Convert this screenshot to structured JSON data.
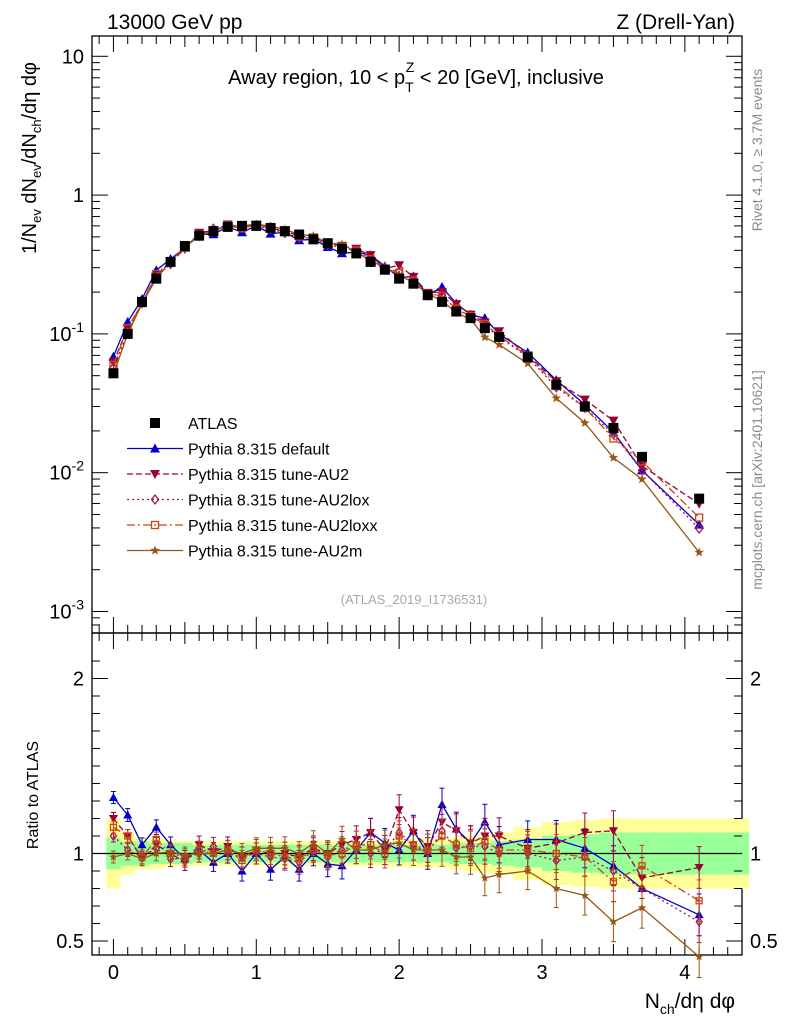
{
  "header": {
    "left": "13000 GeV pp",
    "right": "Z (Drell-Yan)"
  },
  "side_text": {
    "rivet": "Rivet 4.1.0, ≥ 3.7M events",
    "mcplots": "mcplots.cern.ch [arXiv:2401.10621]"
  },
  "chart_data": {
    "type": "scatter",
    "title": "Away region, 10 < p_T^Z < 20 [GeV], inclusive",
    "title_parts": {
      "pre": "Away region, 10 < p",
      "sub": "T",
      "sup": "Z",
      "post": " < 20 [GeV], inclusive"
    },
    "watermark": "(ATLAS_2019_I1736531)",
    "xlabel": "N_ch/dη dφ",
    "ylabel": "1/N_ev dN_ev/dN_ch/dη dφ",
    "ratio_ylabel": "Ratio to ATLAS",
    "xlim": [
      -0.15,
      4.4
    ],
    "ylim": [
      0.0007,
      14
    ],
    "yscale": "log",
    "ratio_ylim": [
      0.42,
      2.26
    ],
    "x_ticks": [
      "0",
      "1",
      "2",
      "3",
      "4"
    ],
    "y_ticks": [
      "10",
      "1",
      "10^-1",
      "10^-2",
      "10^-3"
    ],
    "ratio_ticks": [
      "2",
      "1",
      "0.5"
    ],
    "x": [
      0,
      0.1,
      0.2,
      0.3,
      0.4,
      0.5,
      0.6,
      0.7,
      0.8,
      0.9,
      1.0,
      1.1,
      1.2,
      1.3,
      1.4,
      1.5,
      1.6,
      1.7,
      1.8,
      1.9,
      2.0,
      2.1,
      2.2,
      2.3,
      2.4,
      2.5,
      2.6,
      2.7,
      2.9,
      3.1,
      3.3,
      3.5,
      3.7,
      4.1
    ],
    "data_values": [
      0.052,
      0.1,
      0.17,
      0.25,
      0.33,
      0.43,
      0.51,
      0.55,
      0.59,
      0.6,
      0.6,
      0.58,
      0.55,
      0.52,
      0.48,
      0.45,
      0.41,
      0.38,
      0.33,
      0.29,
      0.25,
      0.23,
      0.19,
      0.17,
      0.145,
      0.13,
      0.11,
      0.095,
      0.068,
      0.043,
      0.03,
      0.021,
      0.013,
      0.0065
    ],
    "band_inner": [
      0.09,
      0.07,
      0.07,
      0.06,
      0.06,
      0.06,
      0.05,
      0.05,
      0.05,
      0.05,
      0.05,
      0.05,
      0.05,
      0.05,
      0.05,
      0.05,
      0.05,
      0.05,
      0.05,
      0.05,
      0.05,
      0.05,
      0.05,
      0.05,
      0.06,
      0.06,
      0.06,
      0.07,
      0.08,
      0.1,
      0.11,
      0.12,
      0.12,
      0.12
    ],
    "band_outer": [
      0.2,
      0.12,
      0.09,
      0.09,
      0.08,
      0.07,
      0.07,
      0.07,
      0.07,
      0.07,
      0.07,
      0.07,
      0.07,
      0.07,
      0.07,
      0.07,
      0.07,
      0.07,
      0.07,
      0.07,
      0.08,
      0.08,
      0.08,
      0.08,
      0.09,
      0.1,
      0.11,
      0.12,
      0.15,
      0.18,
      0.19,
      0.2,
      0.2,
      0.2
    ],
    "series": [
      {
        "name": "ATLAS",
        "color": "#000000",
        "marker": "square",
        "dash": "",
        "is_data": true
      },
      {
        "name": "Pythia 8.315 default",
        "color": "#0000cc",
        "marker": "triangle-up",
        "dash": "",
        "ratios": [
          1.32,
          1.22,
          1.05,
          1.15,
          1.05,
          0.97,
          1.02,
          0.95,
          1.0,
          0.9,
          1.0,
          0.91,
          0.98,
          0.91,
          1.0,
          0.94,
          0.93,
          1.02,
          1.12,
          1.06,
          1.02,
          1.13,
          1.0,
          1.28,
          1.14,
          1.06,
          1.18,
          1.05,
          1.08,
          1.08,
          1.03,
          0.93,
          0.8,
          0.65
        ]
      },
      {
        "name": "Pythia 8.315 tune-AU2",
        "color": "#990033",
        "marker": "triangle-down",
        "dash": "6,3",
        "ratios": [
          1.2,
          1.1,
          0.97,
          1.05,
          1.0,
          0.95,
          1.05,
          1.01,
          1.04,
          0.98,
          1.02,
          1.0,
          1.0,
          0.98,
          1.03,
          1.0,
          1.05,
          1.08,
          1.12,
          1.02,
          1.25,
          1.12,
          1.04,
          1.18,
          1.13,
          1.06,
          1.1,
          1.1,
          1.03,
          1.06,
          1.12,
          1.13,
          0.86,
          0.92
        ]
      },
      {
        "name": "Pythia 8.315 tune-AU2lox",
        "color": "#aa1155",
        "marker": "diamond-open",
        "dash": "2,3",
        "ratios": [
          1.1,
          1.02,
          0.98,
          1.03,
          0.97,
          0.97,
          1.0,
          1.04,
          1.0,
          0.98,
          1.0,
          0.98,
          0.97,
          0.95,
          1.02,
          0.98,
          1.02,
          1.05,
          1.0,
          1.02,
          1.12,
          1.05,
          1.0,
          1.13,
          1.03,
          1.04,
          1.04,
          1.0,
          1.0,
          0.96,
          0.98,
          0.9,
          0.8,
          0.61
        ]
      },
      {
        "name": "Pythia 8.315 tune-AU2loxx",
        "color": "#cc4411",
        "marker": "square-open",
        "dash": "8,3,2,3",
        "ratios": [
          1.15,
          1.1,
          0.98,
          1.08,
          1.0,
          0.98,
          1.02,
          1.0,
          1.02,
          0.96,
          1.02,
          1.0,
          0.98,
          0.97,
          1.02,
          0.99,
          1.0,
          1.05,
          1.05,
          1.0,
          1.1,
          1.05,
          1.02,
          1.1,
          1.05,
          1.03,
          1.07,
          1.02,
          1.02,
          1.0,
          0.98,
          0.84,
          0.93,
          0.73
        ]
      },
      {
        "name": "Pythia 8.315 tune-AU2m",
        "color": "#995511",
        "marker": "star",
        "dash": "",
        "ratios": [
          0.98,
          1.0,
          0.97,
          1.0,
          1.01,
          0.99,
          1.0,
          1.0,
          1.02,
          1.0,
          1.03,
          1.03,
          1.03,
          1.0,
          1.06,
          1.0,
          1.08,
          1.02,
          1.02,
          1.05,
          1.06,
          1.02,
          1.02,
          1.02,
          0.98,
          0.98,
          0.86,
          0.88,
          0.9,
          0.8,
          0.76,
          0.61,
          0.69,
          0.41
        ]
      }
    ]
  }
}
